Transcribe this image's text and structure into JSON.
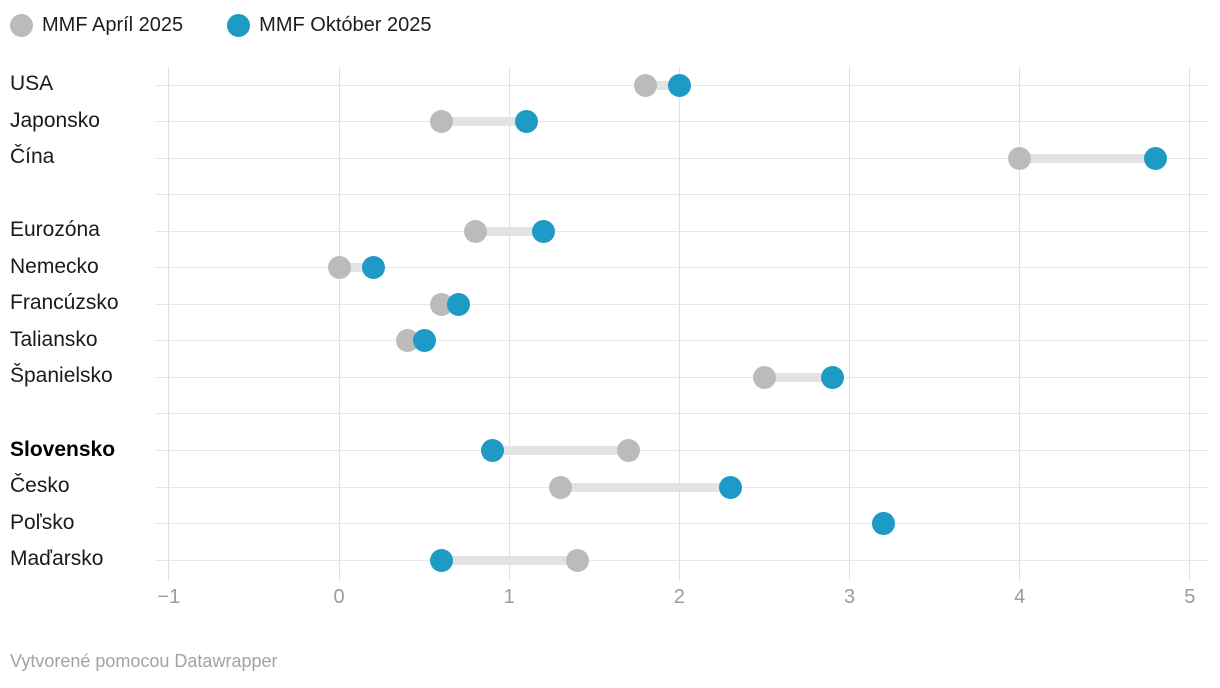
{
  "legend": {
    "april_label": "MMF Apríl 2025",
    "october_label": "MMF Október 2025"
  },
  "footer": {
    "text": "Vytvorené pomocou Datawrapper"
  },
  "colors": {
    "april": "#bbbbbb",
    "october": "#1e9ac7",
    "connector": "#e3e3e3",
    "tick_text": "#9c9c9c"
  },
  "chart_data": {
    "type": "dumbbell",
    "title": "",
    "legend_entries": [
      "MMF Apríl 2025",
      "MMF Október 2025"
    ],
    "xlabel": "",
    "ylabel": "",
    "x_ticks": [
      -1,
      0,
      1,
      2,
      3,
      4,
      5
    ],
    "xlim": [
      -1.08,
      5.1
    ],
    "grid": "on",
    "legend_position": "top-left",
    "series_names": {
      "april": "MMF Apríl 2025",
      "october": "MMF Október 2025"
    },
    "rows": [
      {
        "label": "USA",
        "april": 1.8,
        "october": 2.0
      },
      {
        "label": "Japonsko",
        "april": 0.6,
        "october": 1.1
      },
      {
        "label": "Čína",
        "april": 4.0,
        "october": 4.8
      },
      {
        "label": "Eurozóna",
        "april": 0.8,
        "october": 1.2,
        "gap_before": true
      },
      {
        "label": "Nemecko",
        "april": 0.0,
        "october": 0.2
      },
      {
        "label": "Francúzsko",
        "april": 0.6,
        "october": 0.7
      },
      {
        "label": "Taliansko",
        "april": 0.4,
        "october": 0.5
      },
      {
        "label": "Španielsko",
        "april": 2.5,
        "october": 2.9
      },
      {
        "label": "Slovensko",
        "april": 1.7,
        "october": 0.9,
        "bold": true,
        "gap_before": true
      },
      {
        "label": "Česko",
        "april": 1.3,
        "october": 2.3
      },
      {
        "label": "Poľsko",
        "april": 3.2,
        "october": 3.2
      },
      {
        "label": "Maďarsko",
        "april": 1.4,
        "october": 0.6
      }
    ]
  }
}
